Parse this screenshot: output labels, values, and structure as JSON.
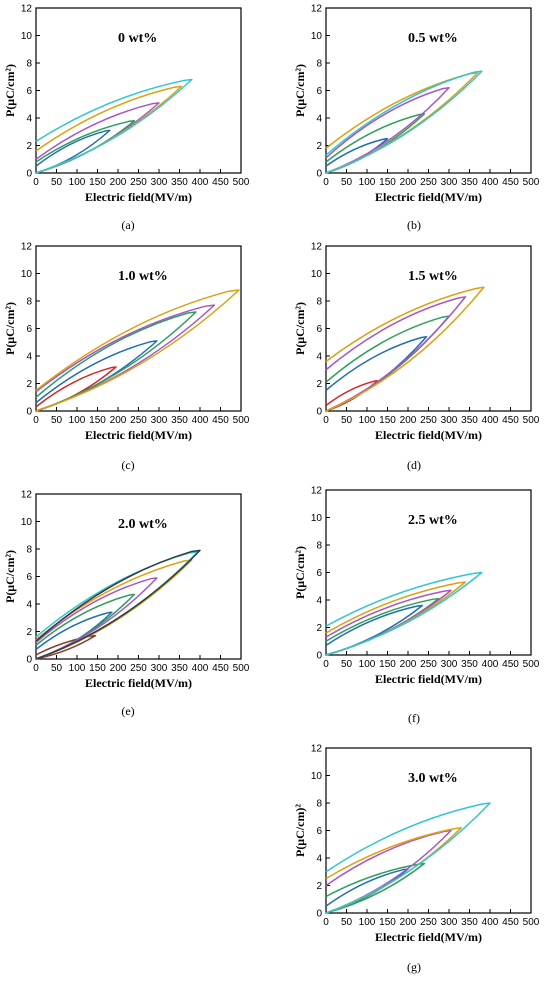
{
  "series_colors": [
    "#d62728",
    "#1f6fb5",
    "#2ca05a",
    "#a855c9",
    "#e0a00c",
    "#2ec7d0",
    "#8b3a2a",
    "#333a44"
  ],
  "chart_data": [
    {
      "type": "line",
      "label_text": "0 wt%",
      "caption": "(a)",
      "xlabel": "Electric field(MV/m)",
      "ylabel": "P(μC/cm²)",
      "xlim": [
        0,
        500
      ],
      "ylim": [
        0,
        12
      ],
      "xticks": [
        0,
        50,
        100,
        150,
        200,
        250,
        300,
        350,
        400,
        450,
        500
      ],
      "yticks": [
        0,
        2,
        4,
        6,
        8,
        10,
        12
      ],
      "loops": [
        {
          "color_index": 1,
          "emax": 180,
          "pmax": 3.1,
          "pr": 0.5
        },
        {
          "color_index": 2,
          "emax": 240,
          "pmax": 3.8,
          "pr": 0.8
        },
        {
          "color_index": 3,
          "emax": 300,
          "pmax": 5.1,
          "pr": 1.0
        },
        {
          "color_index": 4,
          "emax": 355,
          "pmax": 6.3,
          "pr": 1.6
        },
        {
          "color_index": 5,
          "emax": 380,
          "pmax": 6.8,
          "pr": 2.3
        }
      ]
    },
    {
      "type": "line",
      "label_text": "0.5 wt%",
      "caption": "(b)",
      "xlabel": "Electric field(MV/m)",
      "ylabel": "P(μC/cm²)",
      "xlim": [
        0,
        500
      ],
      "ylim": [
        0,
        12
      ],
      "xticks": [
        0,
        50,
        100,
        150,
        200,
        250,
        300,
        350,
        400,
        450,
        500
      ],
      "yticks": [
        0,
        2,
        4,
        6,
        8,
        10,
        12
      ],
      "loops": [
        {
          "color_index": 1,
          "emax": 150,
          "pmax": 2.5,
          "pr": 0.5
        },
        {
          "color_index": 2,
          "emax": 240,
          "pmax": 4.3,
          "pr": 0.8
        },
        {
          "color_index": 3,
          "emax": 300,
          "pmax": 6.2,
          "pr": 1.1
        },
        {
          "color_index": 4,
          "emax": 370,
          "pmax": 7.3,
          "pr": 1.8
        },
        {
          "color_index": 5,
          "emax": 380,
          "pmax": 7.4,
          "pr": 1.3
        }
      ]
    },
    {
      "type": "line",
      "label_text": "1.0 wt%",
      "caption": "(c)",
      "xlabel": "Electric field(MV/m)",
      "ylabel": "P(μC/cm²)",
      "xlim": [
        0,
        500
      ],
      "ylim": [
        0,
        12
      ],
      "xticks": [
        0,
        50,
        100,
        150,
        200,
        250,
        300,
        350,
        400,
        450,
        500
      ],
      "yticks": [
        0,
        2,
        4,
        6,
        8,
        10,
        12
      ],
      "loops": [
        {
          "color_index": 0,
          "emax": 195,
          "pmax": 3.2,
          "pr": 0.3
        },
        {
          "color_index": 1,
          "emax": 295,
          "pmax": 5.1,
          "pr": 0.6
        },
        {
          "color_index": 2,
          "emax": 390,
          "pmax": 7.2,
          "pr": 1.0
        },
        {
          "color_index": 3,
          "emax": 435,
          "pmax": 7.7,
          "pr": 1.4
        },
        {
          "color_index": 4,
          "emax": 495,
          "pmax": 8.8,
          "pr": 1.5
        }
      ]
    },
    {
      "type": "line",
      "label_text": "1.5 wt%",
      "caption": "(d)",
      "xlabel": "Electric field(MV/m)",
      "ylabel": "P(μC/cm²)",
      "xlim": [
        0,
        500
      ],
      "ylim": [
        0,
        12
      ],
      "xticks": [
        0,
        50,
        100,
        150,
        200,
        250,
        300,
        350,
        400,
        450,
        500
      ],
      "yticks": [
        0,
        2,
        4,
        6,
        8,
        10,
        12
      ],
      "loops": [
        {
          "color_index": 0,
          "emax": 125,
          "pmax": 2.2,
          "pr": 0.4
        },
        {
          "color_index": 1,
          "emax": 245,
          "pmax": 5.4,
          "pr": 1.5
        },
        {
          "color_index": 2,
          "emax": 300,
          "pmax": 6.9,
          "pr": 2.1
        },
        {
          "color_index": 3,
          "emax": 340,
          "pmax": 8.3,
          "pr": 3.0
        },
        {
          "color_index": 4,
          "emax": 385,
          "pmax": 9.0,
          "pr": 3.6
        }
      ]
    },
    {
      "type": "line",
      "label_text": "2.0 wt%",
      "caption": "(e)",
      "xlabel": "Electric field(MV/m)",
      "ylabel": "P(μC/cm²)",
      "xlim": [
        0,
        500
      ],
      "ylim": [
        0,
        12
      ],
      "xticks": [
        0,
        50,
        100,
        150,
        200,
        250,
        300,
        350,
        400,
        450,
        500
      ],
      "yticks": [
        0,
        2,
        4,
        6,
        8,
        10,
        12
      ],
      "loops": [
        {
          "color_index": 6,
          "emax": 145,
          "pmax": 1.7,
          "pr": 0.3
        },
        {
          "color_index": 1,
          "emax": 185,
          "pmax": 3.4,
          "pr": 0.7
        },
        {
          "color_index": 2,
          "emax": 240,
          "pmax": 4.7,
          "pr": 1.0
        },
        {
          "color_index": 3,
          "emax": 295,
          "pmax": 5.9,
          "pr": 1.2
        },
        {
          "color_index": 4,
          "emax": 380,
          "pmax": 7.2,
          "pr": 1.4
        },
        {
          "color_index": 5,
          "emax": 395,
          "pmax": 7.8,
          "pr": 1.6
        },
        {
          "color_index": 7,
          "emax": 400,
          "pmax": 7.9,
          "pr": 1.3
        }
      ]
    },
    {
      "type": "line",
      "label_text": "2.5 wt%",
      "caption": "(f)",
      "xlabel": "Electric field(MV/m)",
      "ylabel": "P(μC/cm²)",
      "xlim": [
        0,
        500
      ],
      "ylim": [
        0,
        12
      ],
      "xticks": [
        0,
        50,
        100,
        150,
        200,
        250,
        300,
        350,
        400,
        450,
        500
      ],
      "yticks": [
        0,
        2,
        4,
        6,
        8,
        10,
        12
      ],
      "loops": [
        {
          "color_index": 1,
          "emax": 235,
          "pmax": 3.6,
          "pr": 0.7
        },
        {
          "color_index": 2,
          "emax": 275,
          "pmax": 4.1,
          "pr": 1.0
        },
        {
          "color_index": 3,
          "emax": 305,
          "pmax": 4.7,
          "pr": 1.3
        },
        {
          "color_index": 4,
          "emax": 340,
          "pmax": 5.3,
          "pr": 1.6
        },
        {
          "color_index": 5,
          "emax": 380,
          "pmax": 6.0,
          "pr": 2.1
        }
      ]
    },
    {
      "type": "line",
      "label_text": "3.0 wt%",
      "caption": "(g)",
      "xlabel": "Electric field(MV/m)",
      "ylabel": "P(μC/cm)²",
      "xlim": [
        0,
        500
      ],
      "ylim": [
        0,
        12
      ],
      "xticks": [
        0,
        50,
        100,
        150,
        200,
        250,
        300,
        350,
        400,
        450,
        500
      ],
      "yticks": [
        0,
        2,
        4,
        6,
        8,
        10,
        12
      ],
      "loops": [
        {
          "color_index": 1,
          "emax": 200,
          "pmax": 3.2,
          "pr": 0.5
        },
        {
          "color_index": 2,
          "emax": 240,
          "pmax": 3.6,
          "pr": 1.2
        },
        {
          "color_index": 3,
          "emax": 305,
          "pmax": 6.0,
          "pr": 2.0
        },
        {
          "color_index": 4,
          "emax": 330,
          "pmax": 6.2,
          "pr": 2.5
        },
        {
          "color_index": 5,
          "emax": 400,
          "pmax": 8.0,
          "pr": 3.0
        }
      ]
    }
  ]
}
